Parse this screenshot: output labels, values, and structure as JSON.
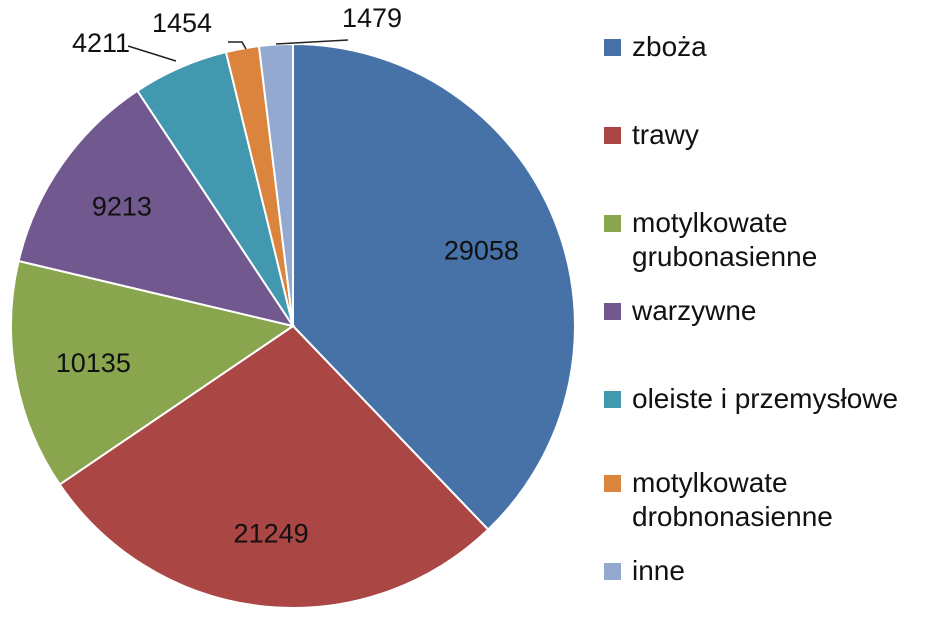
{
  "chart_data": {
    "type": "pie",
    "categories": [
      "zboża",
      "trawy",
      "motylkowate grubonasienne",
      "warzywne",
      "oleiste i przemysłowe",
      "motylkowate drobnonasienne",
      "inne"
    ],
    "values": [
      29058,
      21249,
      10135,
      9213,
      4211,
      1454,
      1479
    ],
    "colors": [
      "#4672A8",
      "#AA4644",
      "#89A54E",
      "#71588F",
      "#4198AF",
      "#DB843D",
      "#93A9CF"
    ],
    "data_labels": [
      "29058",
      "21249",
      "10135",
      "9213",
      "4211",
      "1454",
      "1479"
    ],
    "legend": {
      "placement": "right",
      "entries": [
        "zboża",
        "trawy",
        "motylkowate\ngrubonasienne",
        "warzywne",
        "oleiste i przemysłowe",
        "motylkowate\ndrobnonasienne",
        "inne"
      ]
    },
    "start_angle_deg": 0,
    "direction": "clockwise"
  }
}
